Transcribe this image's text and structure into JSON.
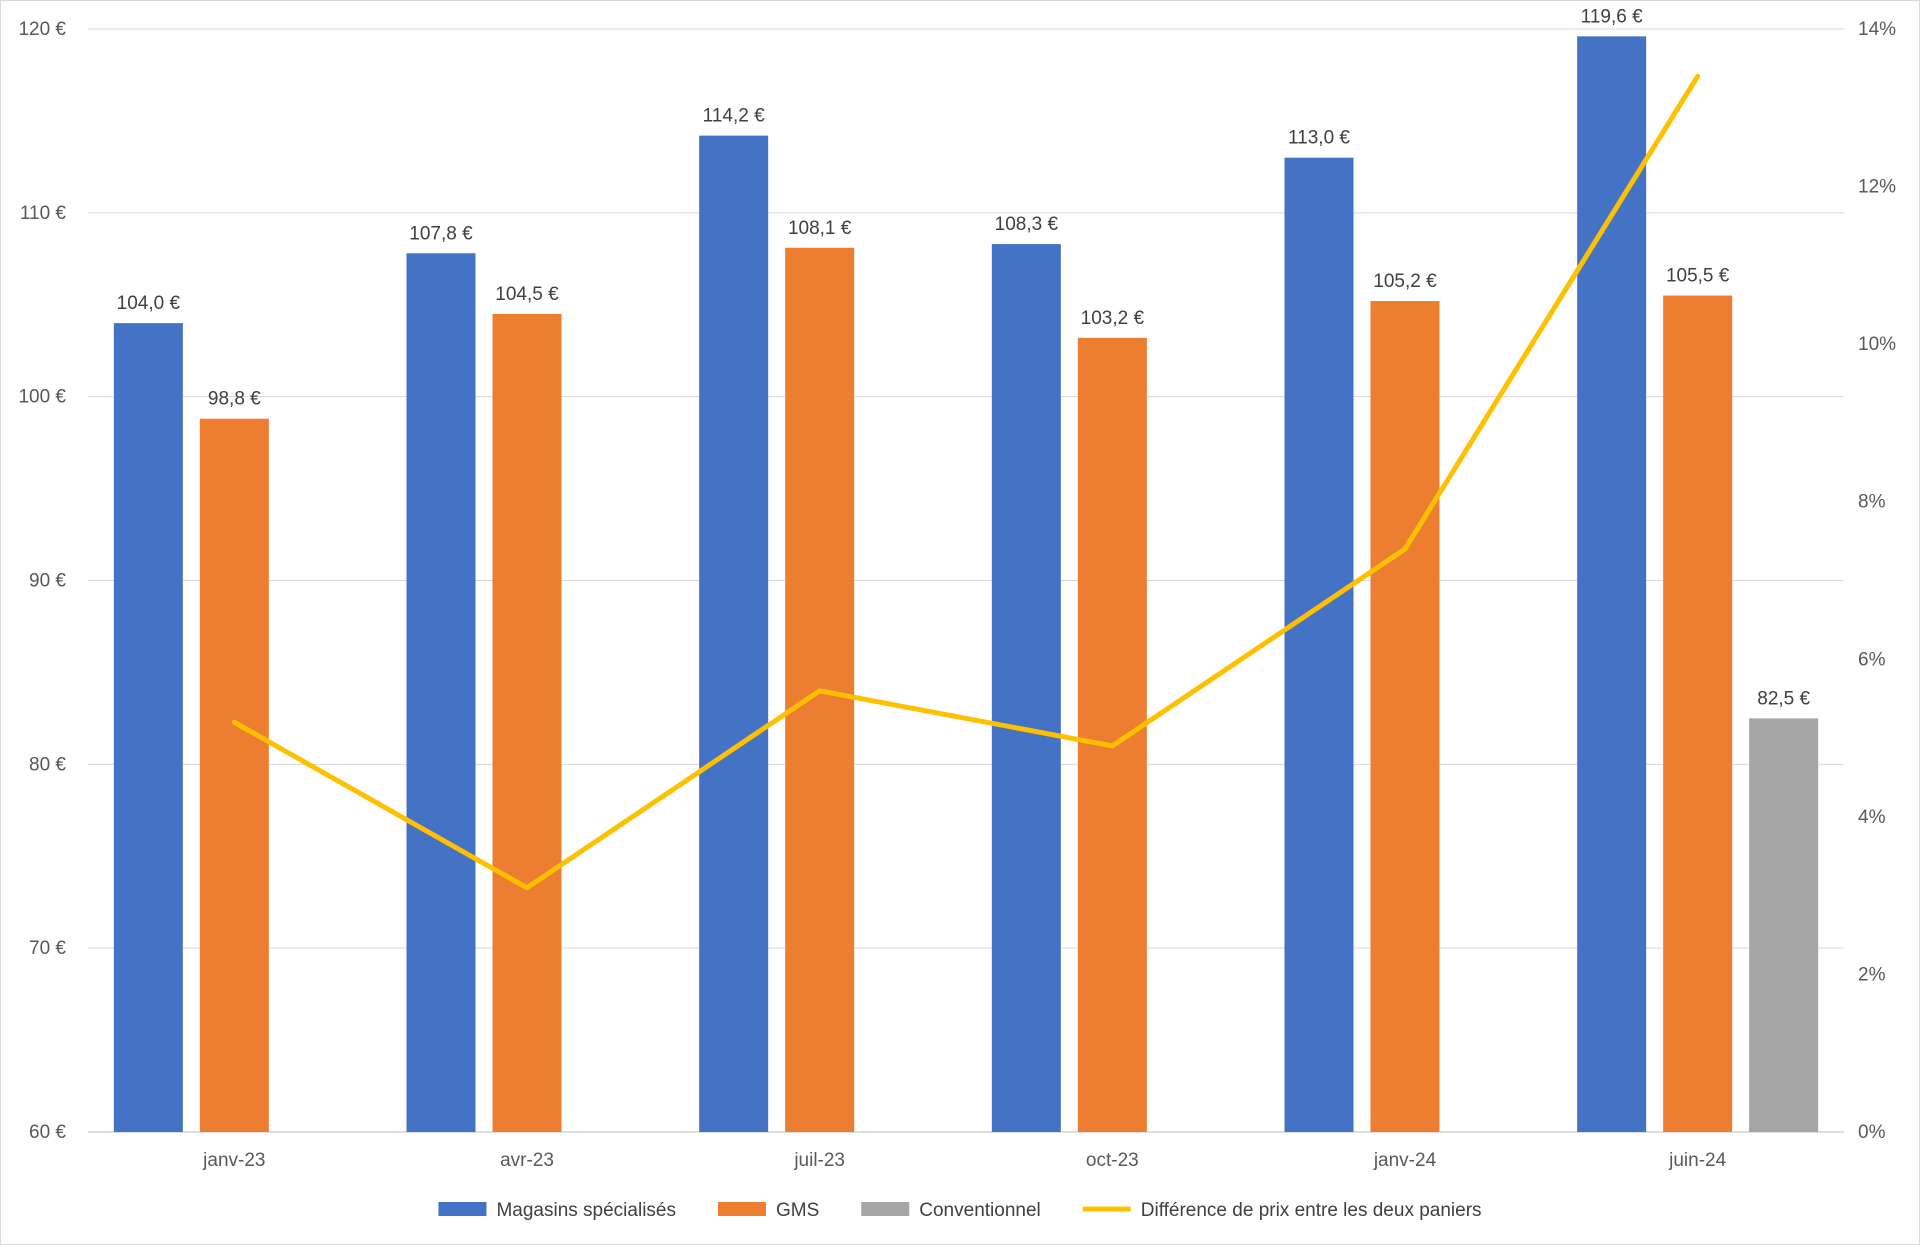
{
  "chart_data": {
    "type": "bar",
    "categories": [
      "janv-23",
      "avr-23",
      "juil-23",
      "oct-23",
      "janv-24",
      "juin-24"
    ],
    "series": [
      {
        "name": "Magasins spécialisés",
        "kind": "bar",
        "axis": "left",
        "color": "#4472C4",
        "values": [
          104.0,
          107.8,
          114.2,
          108.3,
          113.0,
          119.6
        ],
        "labels": [
          "104,0 €",
          "107,8 €",
          "114,2 €",
          "108,3 €",
          "113,0 €",
          "119,6 €"
        ]
      },
      {
        "name": "GMS",
        "kind": "bar",
        "axis": "left",
        "color": "#ED7D31",
        "values": [
          98.8,
          104.5,
          108.1,
          103.2,
          105.2,
          105.5
        ],
        "labels": [
          "98,8 €",
          "104,5 €",
          "108,1 €",
          "103,2 €",
          "105,2 €",
          "105,5 €"
        ]
      },
      {
        "name": "Conventionnel",
        "kind": "bar",
        "axis": "left",
        "color": "#A5A5A5",
        "values": [
          null,
          null,
          null,
          null,
          null,
          82.5
        ],
        "labels": [
          "",
          "",
          "",
          "",
          "",
          "82,5 €"
        ]
      },
      {
        "name": "Différence de prix entre les deux paniers",
        "kind": "line",
        "axis": "right",
        "color": "#FFC000",
        "values": [
          5.2,
          3.1,
          5.6,
          4.9,
          7.4,
          13.4
        ]
      }
    ],
    "y_left": {
      "min": 60,
      "max": 120,
      "step": 10,
      "ticks": [
        "60 €",
        "70 €",
        "80 €",
        "90 €",
        "100 €",
        "110 €",
        "120 €"
      ]
    },
    "y_right": {
      "min": 0,
      "max": 14,
      "step": 2,
      "ticks": [
        "0%",
        "2%",
        "4%",
        "6%",
        "8%",
        "10%",
        "12%",
        "14%"
      ]
    },
    "grid": true,
    "legend": "bottom"
  }
}
